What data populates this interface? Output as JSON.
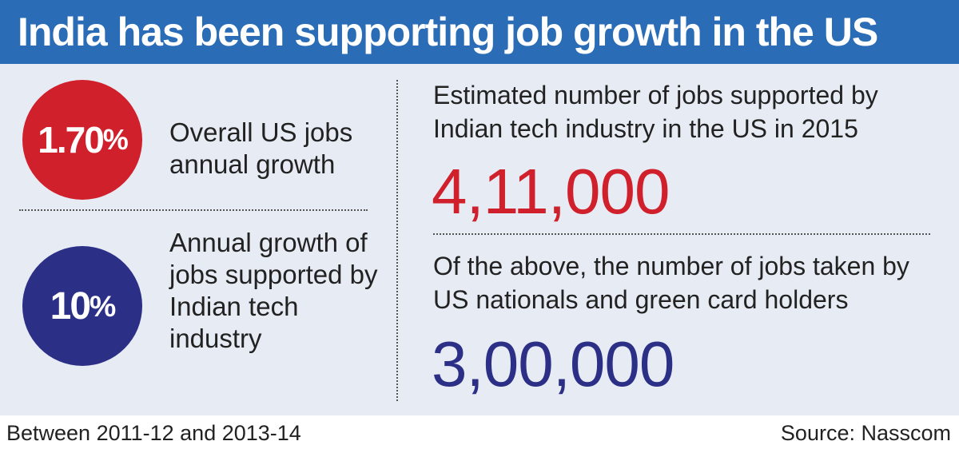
{
  "title": "India has been supporting job growth in the US",
  "left": {
    "stat1": {
      "value": "1.70",
      "unit": "%",
      "label": "Overall US jobs annual growth",
      "color": "#d0202c"
    },
    "stat2": {
      "value": "10",
      "unit": "%",
      "label": "Annual growth of jobs supported by Indian tech industry",
      "color": "#2c2f86"
    }
  },
  "right": {
    "block1": {
      "text": "Estimated number of jobs supported by Indian tech industry in the US in 2015",
      "number": "4,11,000",
      "color": "#d0202c"
    },
    "block2": {
      "text": "Of the above, the number of jobs taken by US nationals and green card holders",
      "number": "3,00,000",
      "color": "#2c2f86"
    }
  },
  "footer": {
    "note": "Between 2011-12 and 2013-14",
    "source": "Source: Nasscom"
  },
  "colors": {
    "header_bg": "#2a6cb6",
    "panel_bg": "#e6ebf4"
  }
}
